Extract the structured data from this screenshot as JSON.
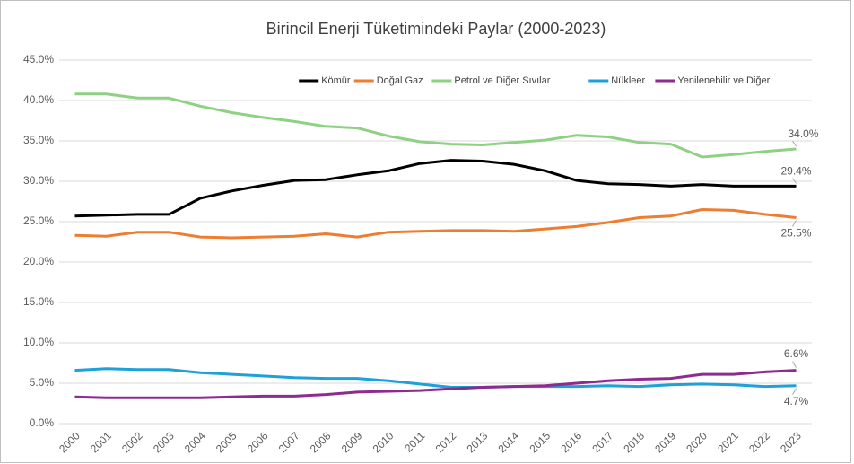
{
  "chart_data": {
    "type": "line",
    "title": "Birincil Enerji Tüketimindeki Paylar (2000-2023)",
    "categories": [
      "2000",
      "2001",
      "2002",
      "2003",
      "2004",
      "2005",
      "2006",
      "2007",
      "2008",
      "2009",
      "2010",
      "2011",
      "2012",
      "2013",
      "2014",
      "2015",
      "2016",
      "2017",
      "2018",
      "2019",
      "2020",
      "2021",
      "2022",
      "2023"
    ],
    "series": [
      {
        "name": "Kömür",
        "color": "#000000",
        "values": [
          25.7,
          25.8,
          25.9,
          25.9,
          27.9,
          28.8,
          29.5,
          30.1,
          30.2,
          30.8,
          31.3,
          32.2,
          32.6,
          32.5,
          32.1,
          31.3,
          30.1,
          29.7,
          29.6,
          29.4,
          29.6,
          29.4,
          29.4,
          29.4
        ],
        "value_labels": [
          null,
          null,
          null,
          null,
          null,
          null,
          null,
          null,
          null,
          null,
          null,
          null,
          null,
          null,
          null,
          null,
          null,
          null,
          null,
          null,
          null,
          null,
          null,
          "29.4%"
        ]
      },
      {
        "name": "Doğal Gaz",
        "color": "#ed7d31",
        "values": [
          23.3,
          23.2,
          23.7,
          23.7,
          23.1,
          23.0,
          23.1,
          23.2,
          23.5,
          23.1,
          23.7,
          23.8,
          23.9,
          23.9,
          23.8,
          24.1,
          24.4,
          24.9,
          25.5,
          25.7,
          26.5,
          26.4,
          25.9,
          25.5
        ],
        "value_labels": [
          null,
          null,
          null,
          null,
          null,
          null,
          null,
          null,
          null,
          null,
          null,
          null,
          null,
          null,
          null,
          null,
          null,
          null,
          null,
          null,
          null,
          null,
          null,
          "25.5%"
        ]
      },
      {
        "name": "Petrol ve Diğer Sıvılar",
        "color": "#8fd184",
        "values": [
          40.8,
          40.8,
          40.3,
          40.3,
          39.3,
          38.5,
          37.9,
          37.4,
          36.8,
          36.6,
          35.6,
          34.9,
          34.6,
          34.5,
          34.8,
          35.1,
          35.7,
          35.5,
          34.8,
          34.6,
          33.0,
          33.3,
          33.7,
          34.0
        ],
        "value_labels": [
          null,
          null,
          null,
          null,
          null,
          null,
          null,
          null,
          null,
          null,
          null,
          null,
          null,
          null,
          null,
          null,
          null,
          null,
          null,
          null,
          null,
          null,
          null,
          "34.0%"
        ]
      },
      {
        "name": "Nükleer",
        "color": "#1ea1d9",
        "values": [
          6.6,
          6.8,
          6.7,
          6.7,
          6.3,
          6.1,
          5.9,
          5.7,
          5.6,
          5.6,
          5.3,
          4.9,
          4.5,
          4.5,
          4.6,
          4.6,
          4.6,
          4.7,
          4.6,
          4.8,
          4.9,
          4.8,
          4.6,
          4.7
        ],
        "value_labels": [
          null,
          null,
          null,
          null,
          null,
          null,
          null,
          null,
          null,
          null,
          null,
          null,
          null,
          null,
          null,
          null,
          null,
          null,
          null,
          null,
          null,
          null,
          null,
          "4.7%"
        ]
      },
      {
        "name": "Yenilenebilir ve Diğer",
        "color": "#8e2b8f",
        "values": [
          3.3,
          3.2,
          3.2,
          3.2,
          3.2,
          3.3,
          3.4,
          3.4,
          3.6,
          3.9,
          4.0,
          4.1,
          4.3,
          4.5,
          4.6,
          4.7,
          5.0,
          5.3,
          5.5,
          5.6,
          6.1,
          6.1,
          6.4,
          6.6
        ],
        "value_labels": [
          null,
          null,
          null,
          null,
          null,
          null,
          null,
          null,
          null,
          null,
          null,
          null,
          null,
          null,
          null,
          null,
          null,
          null,
          null,
          null,
          null,
          null,
          null,
          "6.6%"
        ]
      }
    ],
    "ylim": [
      0,
      45
    ],
    "yticks": [
      {
        "value": 0,
        "label": "0.0%"
      },
      {
        "value": 5,
        "label": "5.0%"
      },
      {
        "value": 10,
        "label": "10.0%"
      },
      {
        "value": 15,
        "label": "15.0%"
      },
      {
        "value": 20,
        "label": "20.0%"
      },
      {
        "value": 25,
        "label": "25.0%"
      },
      {
        "value": 30,
        "label": "30.0%"
      },
      {
        "value": 35,
        "label": "35.0%"
      },
      {
        "value": 40,
        "label": "40.0%"
      },
      {
        "value": 45,
        "label": "45.0%"
      }
    ],
    "grid": true,
    "legend": "top-right"
  }
}
